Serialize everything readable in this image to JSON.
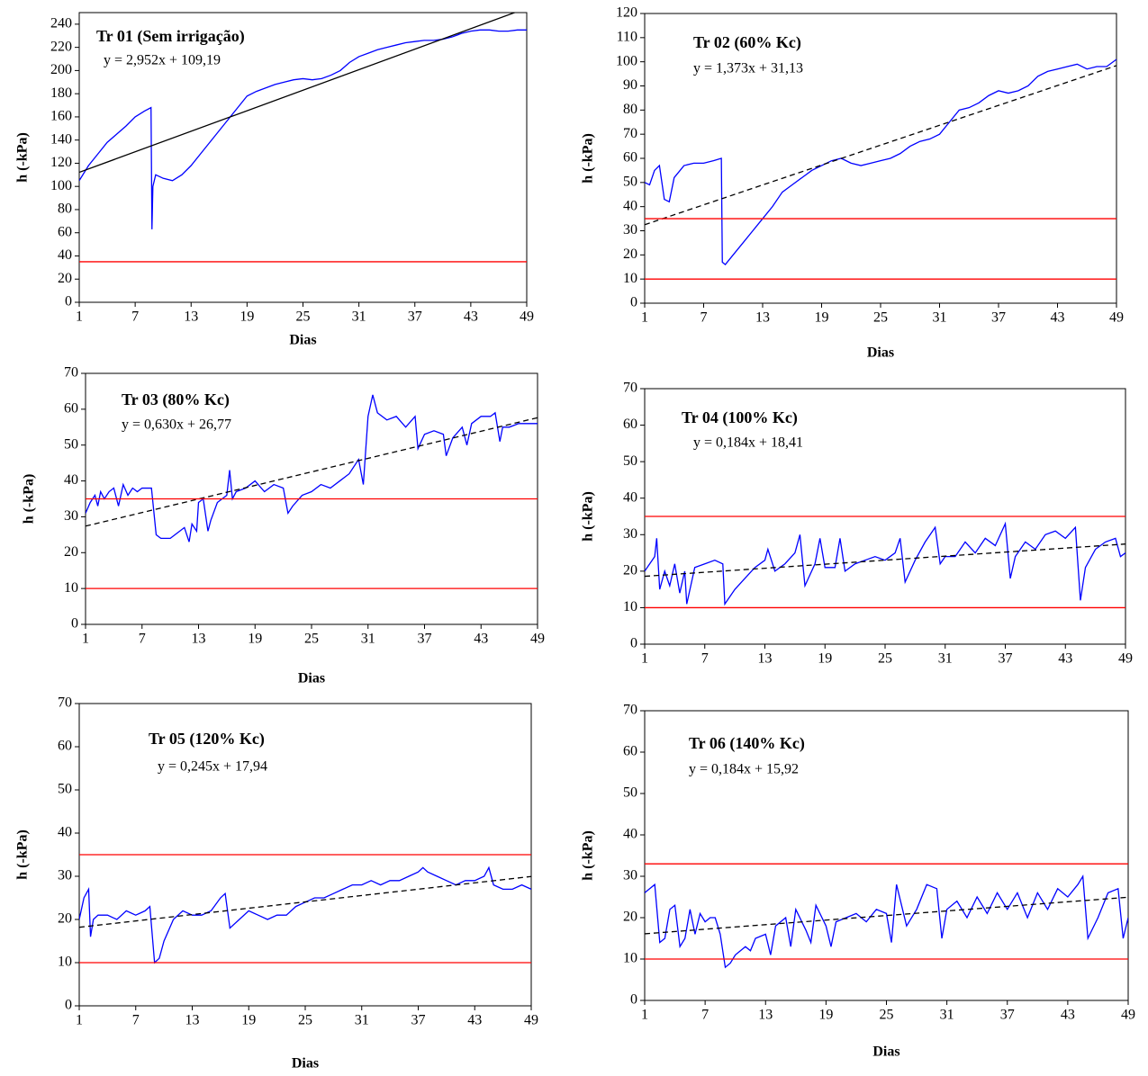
{
  "chart_data": [
    {
      "type": "line",
      "title": "Tr 01 (Sem irrigação)",
      "equation": "y = 2,952x + 109,19",
      "xlabel": "Dias",
      "ylabel": "h (-kPa)",
      "xlim": [
        1,
        49
      ],
      "xticks": [
        1,
        7,
        13,
        19,
        25,
        31,
        37,
        43,
        49
      ],
      "ylim": [
        0,
        250
      ],
      "yticks": [
        0,
        20,
        40,
        60,
        80,
        100,
        120,
        140,
        160,
        180,
        200,
        220,
        240
      ],
      "series": [
        {
          "color": "#0000ff",
          "x": [
            1,
            2,
            3,
            4,
            5,
            6,
            7,
            8,
            8.7,
            8.8,
            8.9,
            9.2,
            10,
            11,
            12,
            13,
            14,
            15,
            16,
            17,
            18,
            19,
            20,
            21,
            22,
            23,
            24,
            25,
            26,
            27,
            28,
            29,
            30,
            31,
            32,
            33,
            34,
            35,
            36,
            37,
            38,
            39,
            40,
            41,
            42,
            43,
            44,
            45,
            46,
            47,
            48,
            49
          ],
          "values": [
            105,
            118,
            128,
            138,
            145,
            152,
            160,
            165,
            168,
            63,
            100,
            110,
            107,
            105,
            110,
            118,
            128,
            138,
            148,
            158,
            168,
            178,
            182,
            185,
            188,
            190,
            192,
            193,
            192,
            193,
            196,
            200,
            207,
            212,
            215,
            218,
            220,
            222,
            224,
            225,
            226,
            226,
            227,
            229,
            232,
            234,
            235,
            235,
            234,
            234,
            235,
            235
          ]
        },
        {
          "color": "#000000",
          "x": [
            1,
            49
          ],
          "values": [
            112.14,
            253.84
          ]
        },
        {
          "color": "#ff0000",
          "x": [
            1,
            49
          ],
          "values": [
            35,
            35
          ]
        }
      ]
    },
    {
      "type": "line",
      "title": "Tr 02 (60% Kc)",
      "equation": "y = 1,373x + 31,13",
      "xlabel": "Dias",
      "ylabel": "h (-kPa)",
      "xlim": [
        1,
        49
      ],
      "xticks": [
        1,
        7,
        13,
        19,
        25,
        31,
        37,
        43,
        49
      ],
      "ylim": [
        0,
        120
      ],
      "yticks": [
        0,
        10,
        20,
        30,
        40,
        50,
        60,
        70,
        80,
        90,
        100,
        110,
        120
      ],
      "series": [
        {
          "color": "#0000ff",
          "x": [
            1,
            1.5,
            2,
            2.5,
            3,
            3.5,
            4,
            5,
            6,
            7,
            8,
            8.8,
            8.9,
            9.2,
            10,
            11,
            12,
            13,
            14,
            15,
            16,
            17,
            18,
            19,
            20,
            21,
            22,
            23,
            24,
            25,
            26,
            27,
            28,
            29,
            30,
            31,
            32,
            33,
            34,
            35,
            36,
            37,
            38,
            39,
            40,
            41,
            42,
            43,
            44,
            45,
            46,
            47,
            48,
            49
          ],
          "values": [
            50,
            49,
            55,
            57,
            43,
            42,
            52,
            57,
            58,
            58,
            59,
            60,
            17,
            16,
            20,
            25,
            30,
            35,
            40,
            46,
            49,
            52,
            55,
            57,
            59,
            60,
            58,
            57,
            58,
            59,
            60,
            62,
            65,
            67,
            68,
            70,
            75,
            80,
            81,
            83,
            86,
            88,
            87,
            88,
            90,
            94,
            96,
            97,
            98,
            99,
            97,
            98,
            98,
            101
          ]
        },
        {
          "color": "#000000",
          "dashed": true,
          "x": [
            1,
            49
          ],
          "values": [
            32.5,
            98.41
          ]
        },
        {
          "color": "#ff0000",
          "x": [
            1,
            49
          ],
          "values": [
            35,
            35
          ]
        },
        {
          "color": "#ff0000",
          "x": [
            1,
            49
          ],
          "values": [
            10,
            10
          ]
        }
      ]
    },
    {
      "type": "line",
      "title": "Tr 03 (80% Kc)",
      "equation": "y = 0,630x + 26,77",
      "xlabel": "Dias",
      "ylabel": "h (-kPa)",
      "xlim": [
        1,
        49
      ],
      "xticks": [
        1,
        7,
        13,
        19,
        25,
        31,
        37,
        43,
        49
      ],
      "ylim": [
        0,
        70
      ],
      "yticks": [
        0,
        10,
        20,
        30,
        40,
        50,
        60,
        70
      ],
      "series": [
        {
          "color": "#0000ff",
          "x": [
            1,
            1.5,
            2,
            2.3,
            2.6,
            3,
            3.5,
            4,
            4.5,
            5,
            5.5,
            6,
            6.5,
            7,
            8,
            8.5,
            9,
            10,
            11,
            11.5,
            12,
            12.3,
            12.8,
            13,
            13.5,
            14,
            14.3,
            15,
            16,
            16.3,
            16.6,
            17,
            18,
            19,
            20,
            21,
            22,
            22.5,
            23,
            24,
            25,
            26,
            27,
            28,
            29,
            30,
            30.5,
            31,
            31.5,
            32,
            33,
            34,
            35,
            36,
            36.3,
            37,
            38,
            39,
            39.3,
            40,
            41,
            41.5,
            42,
            43,
            44,
            44.5,
            45,
            45.3,
            46,
            47,
            48,
            49
          ],
          "values": [
            31,
            34,
            36,
            33,
            37,
            35,
            37,
            38,
            33,
            39,
            36,
            38,
            37,
            38,
            38,
            25,
            24,
            24,
            26,
            27,
            23,
            28,
            26,
            34,
            35,
            26,
            29,
            34,
            36,
            43,
            35,
            37,
            38,
            40,
            37,
            39,
            38,
            31,
            33,
            36,
            37,
            39,
            38,
            40,
            42,
            46,
            39,
            58,
            64,
            59,
            57,
            58,
            55,
            58,
            49,
            53,
            54,
            53,
            47,
            52,
            55,
            50,
            56,
            58,
            58,
            59,
            51,
            55,
            55,
            56,
            56,
            56
          ]
        },
        {
          "color": "#000000",
          "dashed": true,
          "x": [
            1,
            49
          ],
          "values": [
            27.4,
            57.64
          ]
        },
        {
          "color": "#ff0000",
          "x": [
            1,
            49
          ],
          "values": [
            35,
            35
          ]
        },
        {
          "color": "#ff0000",
          "x": [
            1,
            49
          ],
          "values": [
            10,
            10
          ]
        }
      ]
    },
    {
      "type": "line",
      "title": "Tr 04 (100% Kc)",
      "equation": "y = 0,184x + 18,41",
      "ylabel": "h (-kPa)",
      "xlim": [
        1,
        49
      ],
      "xticks": [
        1,
        7,
        13,
        19,
        25,
        31,
        37,
        43,
        49
      ],
      "ylim": [
        0,
        70
      ],
      "yticks": [
        0,
        10,
        20,
        30,
        40,
        50,
        60,
        70
      ],
      "series": [
        {
          "color": "#0000ff",
          "x": [
            1,
            2,
            2.2,
            2.5,
            3,
            3.5,
            4,
            4.5,
            5,
            5.2,
            6,
            7,
            8,
            8.8,
            9,
            10,
            11,
            12,
            13,
            13.3,
            14,
            15,
            16,
            16.5,
            17,
            18,
            18.5,
            19,
            20,
            20.5,
            21,
            22,
            23,
            24,
            25,
            26,
            26.5,
            27,
            28,
            29,
            30,
            30.5,
            31,
            32,
            33,
            34,
            35,
            36,
            37,
            37.5,
            38,
            39,
            40,
            41,
            42,
            43,
            44,
            44.5,
            45,
            46,
            47,
            48,
            48.5,
            49
          ],
          "values": [
            20,
            24,
            29,
            15,
            20,
            16,
            22,
            14,
            20,
            11,
            21,
            22,
            23,
            22,
            11,
            15,
            18,
            21,
            23,
            26,
            20,
            22,
            25,
            30,
            16,
            22,
            29,
            21,
            21,
            29,
            20,
            22,
            23,
            24,
            23,
            25,
            29,
            17,
            23,
            28,
            32,
            22,
            24,
            24,
            28,
            25,
            29,
            27,
            33,
            18,
            24,
            28,
            26,
            30,
            31,
            29,
            32,
            12,
            21,
            26,
            28,
            29,
            24,
            25
          ]
        },
        {
          "color": "#000000",
          "dashed": true,
          "x": [
            1,
            49
          ],
          "values": [
            18.59,
            27.43
          ]
        },
        {
          "color": "#ff0000",
          "x": [
            1,
            49
          ],
          "values": [
            35,
            35
          ]
        },
        {
          "color": "#ff0000",
          "x": [
            1,
            49
          ],
          "values": [
            10,
            10
          ]
        }
      ]
    },
    {
      "type": "line",
      "title": "Tr 05 (120% Kc)",
      "equation": "y = 0,245x + 17,94",
      "xlabel": "Dias",
      "ylabel": "h (-kPa)",
      "xlim": [
        1,
        49
      ],
      "xticks": [
        1,
        7,
        13,
        19,
        25,
        31,
        37,
        43,
        49
      ],
      "ylim": [
        0,
        70
      ],
      "yticks": [
        0,
        10,
        20,
        30,
        40,
        50,
        60,
        70
      ],
      "series": [
        {
          "color": "#0000ff",
          "x": [
            1,
            1.5,
            2,
            2.2,
            2.5,
            3,
            4,
            5,
            6,
            7,
            8,
            8.5,
            9,
            9.5,
            10,
            11,
            12,
            13,
            14,
            15,
            16,
            16.5,
            17,
            18,
            19,
            20,
            21,
            22,
            23,
            24,
            25,
            26,
            27,
            28,
            29,
            30,
            31,
            32,
            33,
            34,
            35,
            36,
            37,
            37.5,
            38,
            39,
            40,
            41,
            42,
            43,
            44,
            44.5,
            45,
            46,
            47,
            48,
            49
          ],
          "values": [
            20,
            25,
            27,
            16,
            20,
            21,
            21,
            20,
            22,
            21,
            22,
            23,
            10,
            11,
            15,
            20,
            22,
            21,
            21,
            22,
            25,
            26,
            18,
            20,
            22,
            21,
            20,
            21,
            21,
            23,
            24,
            25,
            25,
            26,
            27,
            28,
            28,
            29,
            28,
            29,
            29,
            30,
            31,
            32,
            31,
            30,
            29,
            28,
            29,
            29,
            30,
            32,
            28,
            27,
            27,
            28,
            27
          ]
        },
        {
          "color": "#000000",
          "dashed": true,
          "x": [
            1,
            49
          ],
          "values": [
            18.19,
            29.95
          ]
        },
        {
          "color": "#ff0000",
          "x": [
            1,
            49
          ],
          "values": [
            35,
            35
          ]
        },
        {
          "color": "#ff0000",
          "x": [
            1,
            49
          ],
          "values": [
            10,
            10
          ]
        }
      ]
    },
    {
      "type": "line",
      "title": "Tr 06 (140% Kc)",
      "equation": "y = 0,184x + 15,92",
      "xlabel": "Dias",
      "ylabel": "h (-kPa)",
      "xlim": [
        1,
        49
      ],
      "xticks": [
        1,
        7,
        13,
        19,
        25,
        31,
        37,
        43,
        49
      ],
      "ylim": [
        0,
        70
      ],
      "yticks": [
        0,
        10,
        20,
        30,
        40,
        50,
        60,
        70
      ],
      "series": [
        {
          "color": "#0000ff",
          "x": [
            1,
            1.5,
            2,
            2.5,
            3,
            3.5,
            4,
            4.5,
            5,
            5.5,
            6,
            6.5,
            7,
            7.5,
            8,
            8.5,
            9,
            9.5,
            10,
            11,
            11.5,
            12,
            13,
            13.5,
            14,
            15,
            15.5,
            16,
            17,
            17.5,
            18,
            19,
            19.5,
            20,
            21,
            22,
            23,
            24,
            25,
            25.5,
            26,
            27,
            28,
            29,
            30,
            30.5,
            31,
            32,
            33,
            34,
            35,
            36,
            37,
            38,
            39,
            40,
            41,
            42,
            43,
            44,
            44.5,
            45,
            46,
            47,
            48,
            48.5,
            49
          ],
          "values": [
            26,
            27,
            28,
            14,
            15,
            22,
            23,
            13,
            15,
            22,
            16,
            21,
            19,
            20,
            20,
            16,
            8,
            9,
            11,
            13,
            12,
            15,
            16,
            11,
            18,
            20,
            13,
            22,
            17,
            14,
            23,
            18,
            13,
            19,
            20,
            21,
            19,
            22,
            21,
            14,
            28,
            18,
            22,
            28,
            27,
            15,
            22,
            24,
            20,
            25,
            21,
            26,
            22,
            26,
            20,
            26,
            22,
            27,
            25,
            28,
            30,
            15,
            20,
            26,
            27,
            15,
            20
          ]
        },
        {
          "color": "#000000",
          "dashed": true,
          "x": [
            1,
            49
          ],
          "values": [
            16.1,
            24.94
          ]
        },
        {
          "color": "#ff0000",
          "x": [
            1,
            49
          ],
          "values": [
            33,
            33
          ]
        },
        {
          "color": "#ff0000",
          "x": [
            1,
            49
          ],
          "values": [
            10,
            10
          ]
        }
      ]
    }
  ]
}
